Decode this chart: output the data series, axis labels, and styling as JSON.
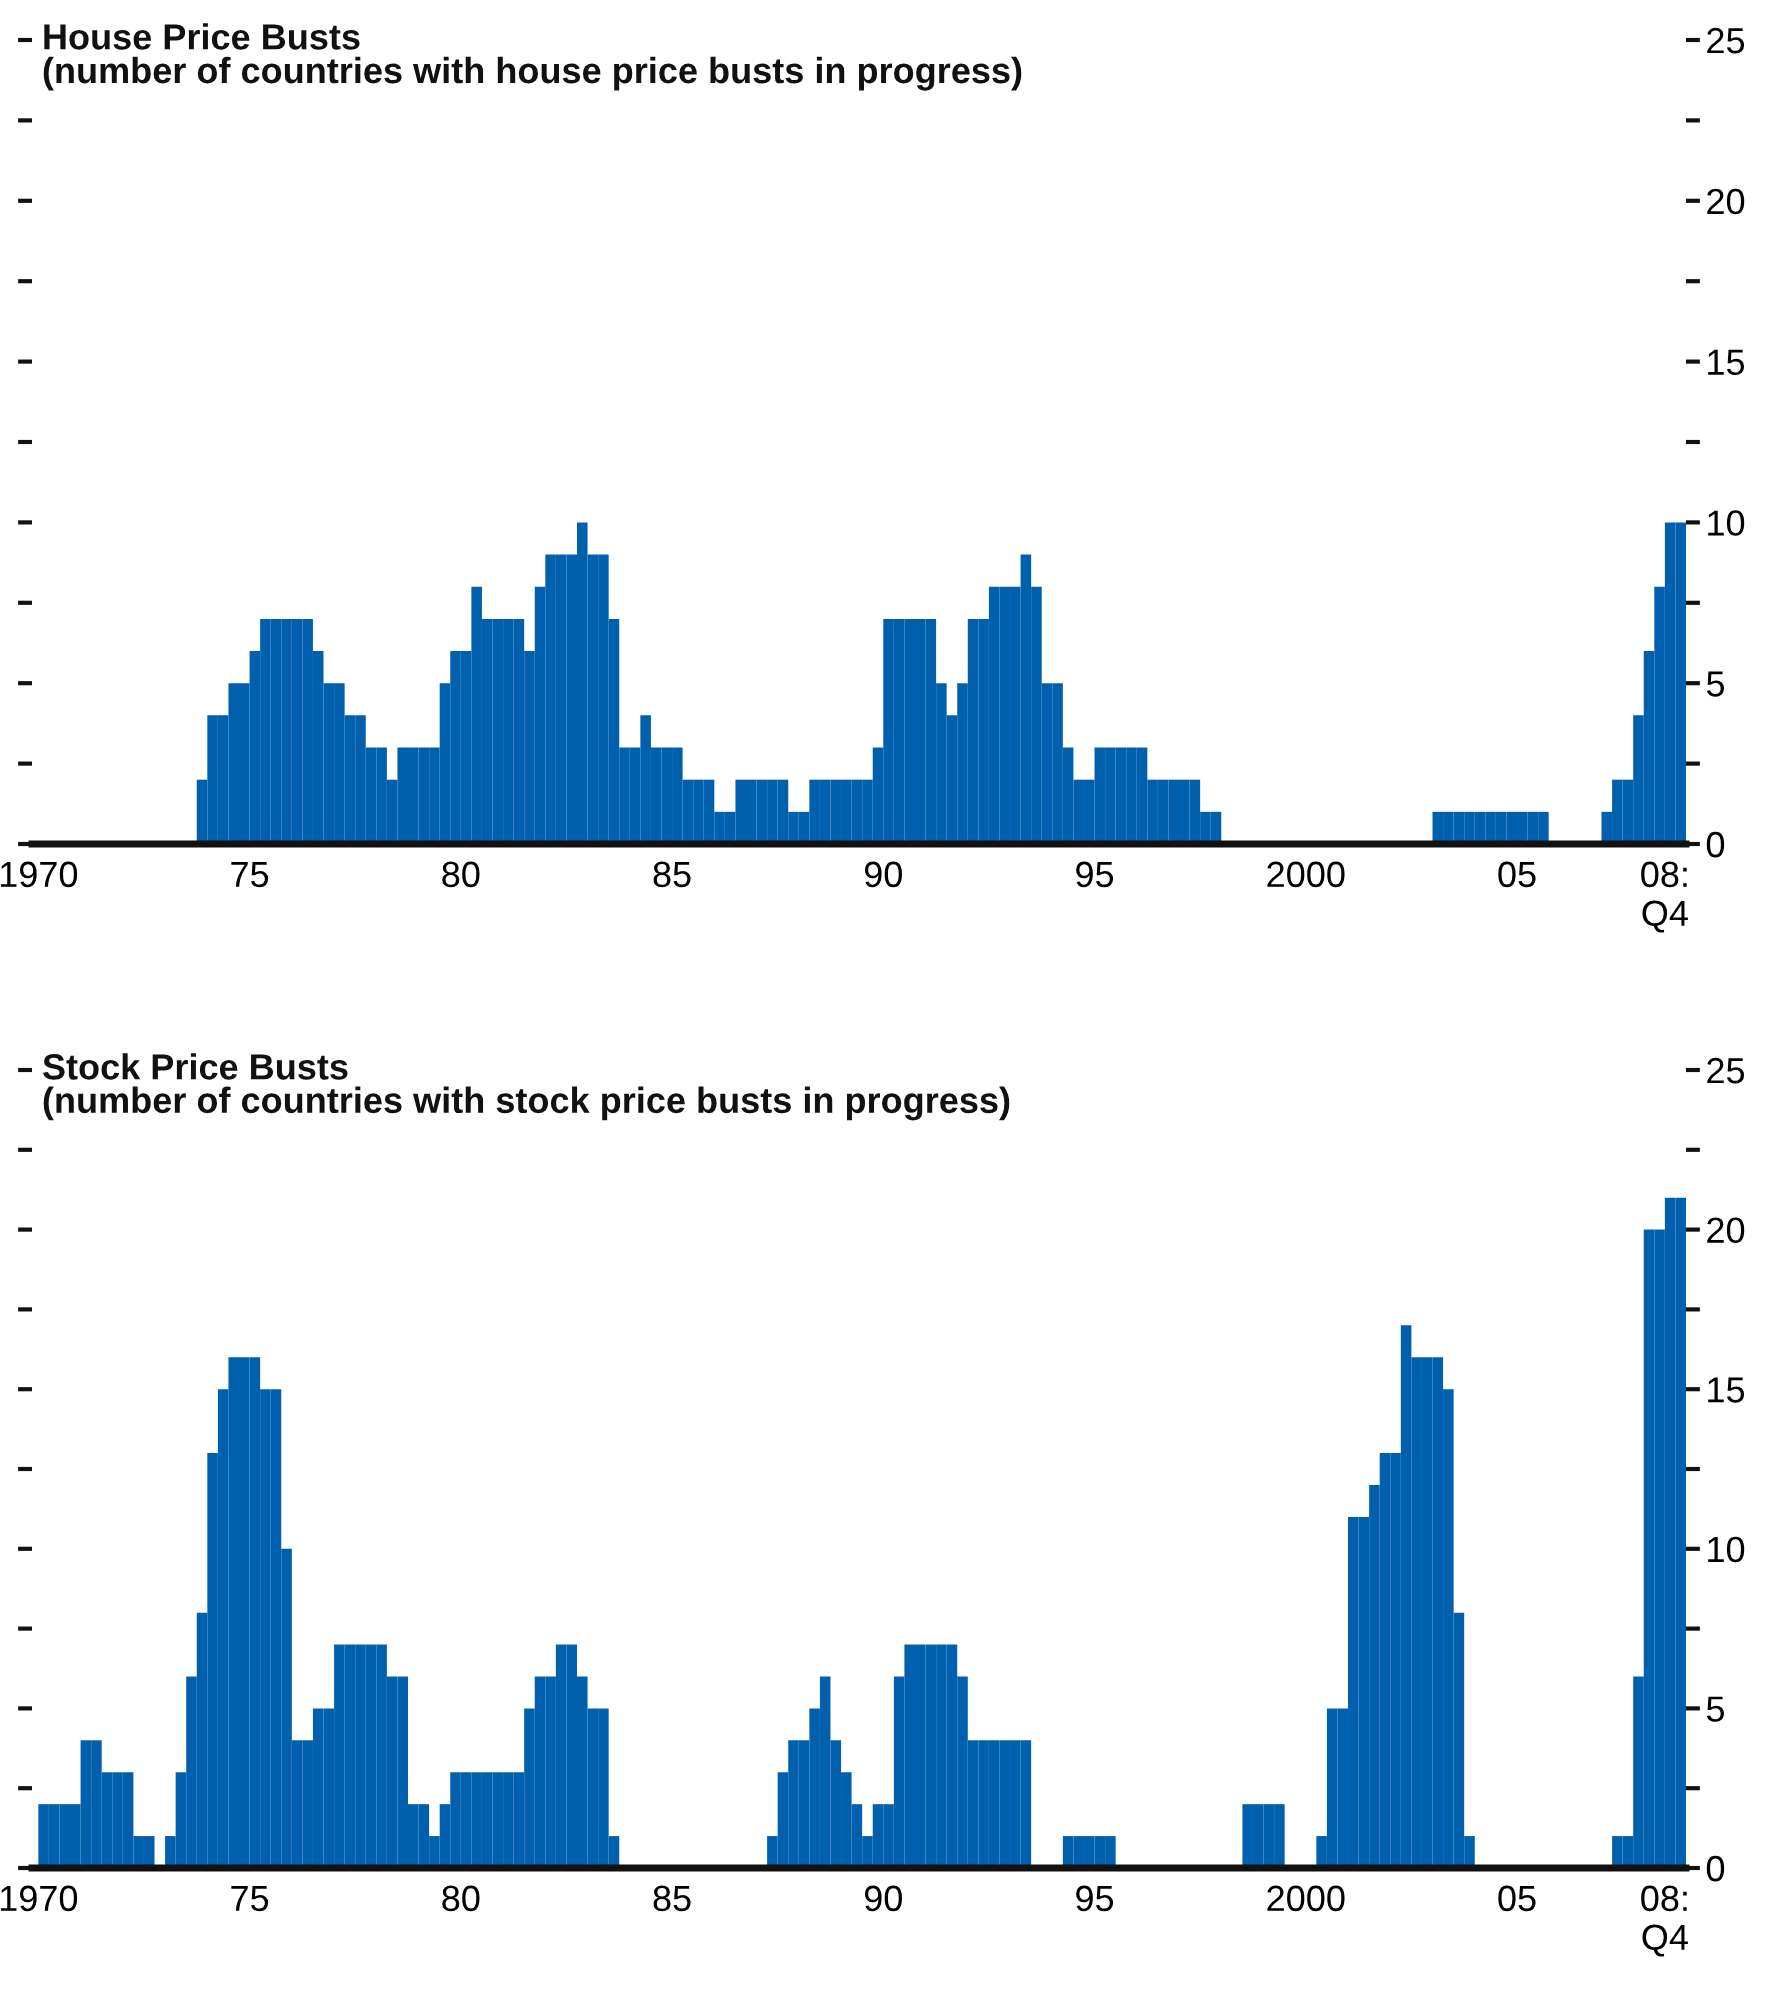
{
  "chart_data": [
    {
      "type": "bar",
      "title": "House Price Busts",
      "subtitle": "(number of countries with house price busts in progress)",
      "color": "#0060ae",
      "x": [
        1970,
        1970.25,
        1970.5,
        1970.75,
        1971,
        1971.25,
        1971.5,
        1971.75,
        1972,
        1972.25,
        1972.5,
        1972.75,
        1973,
        1973.25,
        1973.5,
        1973.75,
        1974,
        1974.25,
        1974.5,
        1974.75,
        1975,
        1975.25,
        1975.5,
        1975.75,
        1976,
        1976.25,
        1976.5,
        1976.75,
        1977,
        1977.25,
        1977.5,
        1977.75,
        1978,
        1978.25,
        1978.5,
        1978.75,
        1979,
        1979.25,
        1979.5,
        1979.75,
        1980,
        1980.25,
        1980.5,
        1980.75,
        1981,
        1981.25,
        1981.5,
        1981.75,
        1982,
        1982.25,
        1982.5,
        1982.75,
        1983,
        1983.25,
        1983.5,
        1983.75,
        1984,
        1984.25,
        1984.5,
        1984.75,
        1985,
        1985.25,
        1985.5,
        1985.75,
        1986,
        1986.25,
        1986.5,
        1986.75,
        1987,
        1987.25,
        1987.5,
        1987.75,
        1988,
        1988.25,
        1988.5,
        1988.75,
        1989,
        1989.25,
        1989.5,
        1989.75,
        1990,
        1990.25,
        1990.5,
        1990.75,
        1991,
        1991.25,
        1991.5,
        1991.75,
        1992,
        1992.25,
        1992.5,
        1992.75,
        1993,
        1993.25,
        1993.5,
        1993.75,
        1994,
        1994.25,
        1994.5,
        1994.75,
        1995,
        1995.25,
        1995.5,
        1995.75,
        1996,
        1996.25,
        1996.5,
        1996.75,
        1997,
        1997.25,
        1997.5,
        1997.75,
        1998,
        1998.25,
        1998.5,
        1998.75,
        1999,
        1999.25,
        1999.5,
        1999.75,
        2000,
        2000.25,
        2000.5,
        2000.75,
        2001,
        2001.25,
        2001.5,
        2001.75,
        2002,
        2002.25,
        2002.5,
        2002.75,
        2003,
        2003.25,
        2003.5,
        2003.75,
        2004,
        2004.25,
        2004.5,
        2004.75,
        2005,
        2005.25,
        2005.5,
        2005.75,
        2006,
        2006.25,
        2006.5,
        2006.75,
        2007,
        2007.25,
        2007.5,
        2007.75,
        2008,
        2008.25,
        2008.5,
        2008.75
      ],
      "values": [
        0,
        0,
        0,
        0,
        0,
        0,
        0,
        0,
        0,
        0,
        0,
        0,
        0,
        0,
        0,
        2,
        4,
        4,
        5,
        5,
        6,
        7,
        7,
        7,
        7,
        7,
        6,
        5,
        5,
        4,
        4,
        3,
        3,
        2,
        3,
        3,
        3,
        3,
        5,
        6,
        6,
        8,
        7,
        7,
        7,
        7,
        6,
        8,
        9,
        9,
        9,
        10,
        9,
        9,
        7,
        3,
        3,
        4,
        3,
        3,
        3,
        2,
        2,
        2,
        1,
        1,
        2,
        2,
        2,
        2,
        2,
        1,
        1,
        2,
        2,
        2,
        2,
        2,
        2,
        3,
        7,
        7,
        7,
        7,
        7,
        5,
        4,
        5,
        7,
        7,
        8,
        8,
        8,
        9,
        8,
        5,
        5,
        3,
        2,
        2,
        3,
        3,
        3,
        3,
        3,
        2,
        2,
        2,
        2,
        2,
        1,
        1,
        0,
        0,
        0,
        0,
        0,
        0,
        0,
        0,
        0,
        0,
        0,
        0,
        0,
        0,
        0,
        0,
        0,
        0,
        0,
        0,
        1,
        1,
        1,
        1,
        1,
        1,
        1,
        1,
        1,
        1,
        1,
        0,
        0,
        0,
        0,
        0,
        1,
        2,
        2,
        4,
        6,
        8,
        10,
        10
      ],
      "xlim": [
        1969.85,
        2009.0
      ],
      "xticks": [
        1970,
        {
          "value": 1975,
          "label": "75"
        },
        {
          "value": 1980,
          "label": "80"
        },
        {
          "value": 1985,
          "label": "85"
        },
        {
          "value": 1990,
          "label": "90"
        },
        {
          "value": 1995,
          "label": "95"
        },
        2000,
        {
          "value": 2005,
          "label": "05"
        },
        {
          "value": 2008.5,
          "label": "08:\nQ4"
        }
      ],
      "ylim": [
        0,
        25
      ],
      "yticks": [
        0,
        {
          "value": 2.5,
          "label": null
        },
        5,
        {
          "value": 7.5,
          "label": null
        },
        10,
        {
          "value": 12.5,
          "label": null
        },
        15,
        {
          "value": 17.5,
          "label": null
        },
        20,
        {
          "value": 22.5,
          "label": null
        },
        25
      ]
    },
    {
      "type": "bar",
      "title": "Stock Price Busts",
      "subtitle": "(number of countries with stock price busts in progress)",
      "color": "#0060ae",
      "x": [
        1970,
        1970.25,
        1970.5,
        1970.75,
        1971,
        1971.25,
        1971.5,
        1971.75,
        1972,
        1972.25,
        1972.5,
        1972.75,
        1973,
        1973.25,
        1973.5,
        1973.75,
        1974,
        1974.25,
        1974.5,
        1974.75,
        1975,
        1975.25,
        1975.5,
        1975.75,
        1976,
        1976.25,
        1976.5,
        1976.75,
        1977,
        1977.25,
        1977.5,
        1977.75,
        1978,
        1978.25,
        1978.5,
        1978.75,
        1979,
        1979.25,
        1979.5,
        1979.75,
        1980,
        1980.25,
        1980.5,
        1980.75,
        1981,
        1981.25,
        1981.5,
        1981.75,
        1982,
        1982.25,
        1982.5,
        1982.75,
        1983,
        1983.25,
        1983.5,
        1983.75,
        1984,
        1984.25,
        1984.5,
        1984.75,
        1985,
        1985.25,
        1985.5,
        1985.75,
        1986,
        1986.25,
        1986.5,
        1986.75,
        1987,
        1987.25,
        1987.5,
        1987.75,
        1988,
        1988.25,
        1988.5,
        1988.75,
        1989,
        1989.25,
        1989.5,
        1989.75,
        1990,
        1990.25,
        1990.5,
        1990.75,
        1991,
        1991.25,
        1991.5,
        1991.75,
        1992,
        1992.25,
        1992.5,
        1992.75,
        1993,
        1993.25,
        1993.5,
        1993.75,
        1994,
        1994.25,
        1994.5,
        1994.75,
        1995,
        1995.25,
        1995.5,
        1995.75,
        1996,
        1996.25,
        1996.5,
        1996.75,
        1997,
        1997.25,
        1997.5,
        1997.75,
        1998,
        1998.25,
        1998.5,
        1998.75,
        1999,
        1999.25,
        1999.5,
        1999.75,
        2000,
        2000.25,
        2000.5,
        2000.75,
        2001,
        2001.25,
        2001.5,
        2001.75,
        2002,
        2002.25,
        2002.5,
        2002.75,
        2003,
        2003.25,
        2003.5,
        2003.75,
        2004,
        2004.25,
        2004.5,
        2004.75,
        2005,
        2005.25,
        2005.5,
        2005.75,
        2006,
        2006.25,
        2006.5,
        2006.75,
        2007,
        2007.25,
        2007.5,
        2007.75,
        2008,
        2008.25,
        2008.5,
        2008.75
      ],
      "values": [
        2,
        2,
        2,
        2,
        4,
        4,
        3,
        3,
        3,
        1,
        1,
        0,
        1,
        3,
        6,
        8,
        13,
        15,
        16,
        16,
        16,
        15,
        15,
        10,
        4,
        4,
        5,
        5,
        7,
        7,
        7,
        7,
        7,
        6,
        6,
        2,
        2,
        1,
        2,
        3,
        3,
        3,
        3,
        3,
        3,
        3,
        5,
        6,
        6,
        7,
        7,
        6,
        5,
        5,
        1,
        0,
        0,
        0,
        0,
        0,
        0,
        0,
        0,
        0,
        0,
        0,
        0,
        0,
        0,
        1,
        3,
        4,
        4,
        5,
        6,
        4,
        3,
        2,
        1,
        2,
        2,
        6,
        7,
        7,
        7,
        7,
        7,
        6,
        4,
        4,
        4,
        4,
        4,
        4,
        0,
        0,
        0,
        1,
        1,
        1,
        1,
        1,
        0,
        0,
        0,
        0,
        0,
        0,
        0,
        0,
        0,
        0,
        0,
        0,
        2,
        2,
        2,
        2,
        0,
        0,
        0,
        1,
        5,
        5,
        11,
        11,
        12,
        13,
        13,
        17,
        16,
        16,
        16,
        15,
        8,
        1,
        0,
        0,
        0,
        0,
        0,
        0,
        0,
        0,
        0,
        0,
        0,
        0,
        0,
        1,
        1,
        6,
        20,
        20,
        21,
        21
      ],
      "xlim": [
        1969.85,
        2009.0
      ],
      "xticks": [
        1970,
        {
          "value": 1975,
          "label": "75"
        },
        {
          "value": 1980,
          "label": "80"
        },
        {
          "value": 1985,
          "label": "85"
        },
        {
          "value": 1990,
          "label": "90"
        },
        {
          "value": 1995,
          "label": "95"
        },
        2000,
        {
          "value": 2005,
          "label": "05"
        },
        {
          "value": 2008.5,
          "label": "08:\nQ4"
        }
      ],
      "ylim": [
        0,
        25
      ],
      "yticks": [
        0,
        {
          "value": 2.5,
          "label": null
        },
        5,
        {
          "value": 7.5,
          "label": null
        },
        10,
        {
          "value": 12.5,
          "label": null
        },
        15,
        {
          "value": 17.5,
          "label": null
        },
        20,
        {
          "value": 22.5,
          "label": null
        },
        25
      ]
    }
  ]
}
